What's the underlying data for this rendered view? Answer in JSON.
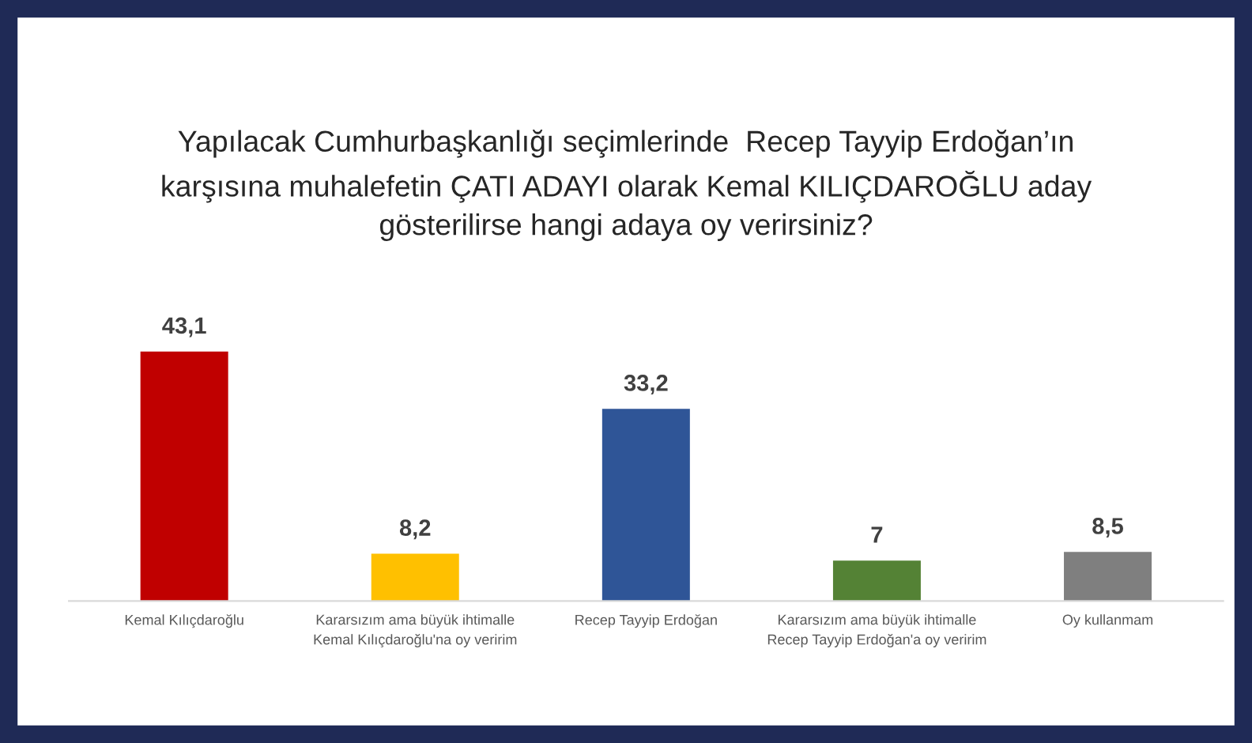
{
  "chart_data": {
    "type": "bar",
    "title": "Yapılacak Cumhurbaşkanlığı seçimlerinde  Recep Tayyip Erdoğan’ın\nkarşısına muhalefetin ÇATI ADAYI olarak Kemal KILIÇDAROĞLU aday\ngösterilirse hangi adaya oy verirsiniz?",
    "categories": [
      "Kemal Kılıçdaroğlu",
      "Kararsızım ama büyük ihtimalle\nKemal Kılıçdaroğlu'na oy veririm",
      "Recep Tayyip Erdoğan",
      "Kararsızım ama büyük ihtimalle\nRecep Tayyip Erdoğan'a oy veririm",
      "Oy kullanmam"
    ],
    "values": [
      43.1,
      8.2,
      33.2,
      7,
      8.5
    ],
    "value_labels": [
      "43,1",
      "8,2",
      "33,2",
      "7",
      "8,5"
    ],
    "colors": [
      "#c00000",
      "#ffc000",
      "#2f5597",
      "#548235",
      "#7f7f7f"
    ]
  }
}
